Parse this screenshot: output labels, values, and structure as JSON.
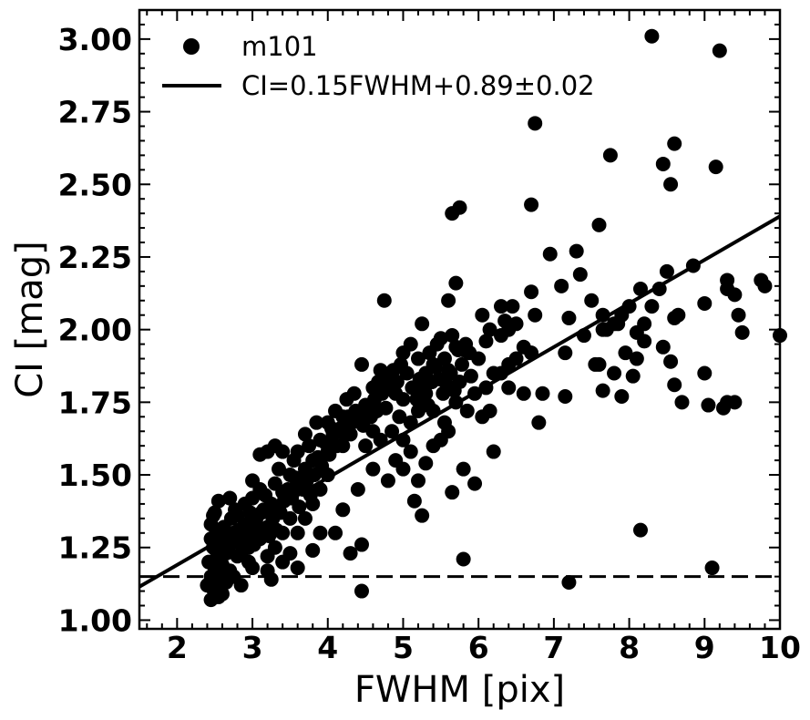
{
  "chart_data": {
    "type": "scatter",
    "title": "",
    "xlabel": "FWHM [pix]",
    "ylabel": "CI [mag]",
    "xlim": [
      1.5,
      10
    ],
    "ylim": [
      0.97,
      3.1
    ],
    "x_ticks": [
      "2",
      "3",
      "4",
      "5",
      "6",
      "7",
      "8",
      "9",
      "10"
    ],
    "y_ticks": [
      "1.00",
      "1.25",
      "1.50",
      "1.75",
      "2.00",
      "2.25",
      "2.50",
      "2.75",
      "3.00"
    ],
    "legend_position": "top-left",
    "legend": [
      "m101",
      "CI=0.15FWHM+0.89±0.02"
    ],
    "series": [
      {
        "name": "m101",
        "marker": "filled-circle",
        "color": "#000000",
        "points": [
          [
            2.45,
            1.07
          ],
          [
            2.5,
            1.1
          ],
          [
            2.55,
            1.08
          ],
          [
            2.4,
            1.12
          ],
          [
            2.6,
            1.09
          ],
          [
            2.45,
            1.15
          ],
          [
            2.5,
            1.18
          ],
          [
            2.42,
            1.2
          ],
          [
            2.55,
            1.22
          ],
          [
            2.48,
            1.25
          ],
          [
            2.6,
            1.19
          ],
          [
            2.65,
            1.23
          ],
          [
            2.7,
            1.17
          ],
          [
            2.45,
            1.28
          ],
          [
            2.52,
            1.3
          ],
          [
            2.58,
            1.27
          ],
          [
            2.62,
            1.32
          ],
          [
            2.7,
            1.26
          ],
          [
            2.75,
            1.3
          ],
          [
            2.8,
            1.22
          ],
          [
            2.85,
            1.27
          ],
          [
            2.9,
            1.33
          ],
          [
            2.95,
            1.25
          ],
          [
            3.0,
            1.3
          ],
          [
            3.05,
            1.35
          ],
          [
            2.45,
            1.33
          ],
          [
            2.5,
            1.37
          ],
          [
            2.55,
            1.41
          ],
          [
            2.7,
            1.42
          ],
          [
            2.48,
            1.36
          ],
          [
            2.8,
            1.36
          ],
          [
            2.9,
            1.4
          ],
          [
            3.0,
            1.42
          ],
          [
            3.0,
            1.48
          ],
          [
            3.1,
            1.45
          ],
          [
            3.15,
            1.38
          ],
          [
            3.2,
            1.32
          ],
          [
            3.25,
            1.4
          ],
          [
            3.3,
            1.47
          ],
          [
            3.35,
            1.52
          ],
          [
            3.4,
            1.44
          ],
          [
            3.5,
            1.5
          ],
          [
            3.55,
            1.55
          ],
          [
            3.6,
            1.46
          ],
          [
            3.7,
            1.52
          ],
          [
            3.75,
            1.6
          ],
          [
            3.8,
            1.55
          ],
          [
            3.9,
            1.62
          ],
          [
            4.0,
            1.58
          ],
          [
            4.05,
            1.66
          ],
          [
            3.1,
            1.57
          ],
          [
            3.2,
            1.58
          ],
          [
            3.3,
            1.6
          ],
          [
            3.4,
            1.58
          ],
          [
            3.6,
            1.58
          ],
          [
            3.7,
            1.64
          ],
          [
            3.85,
            1.68
          ],
          [
            4.0,
            1.68
          ],
          [
            4.1,
            1.72
          ],
          [
            4.2,
            1.7
          ],
          [
            4.25,
            1.76
          ],
          [
            4.35,
            1.78
          ],
          [
            4.45,
            1.88
          ],
          [
            4.5,
            1.74
          ],
          [
            4.6,
            1.8
          ],
          [
            4.65,
            1.72
          ],
          [
            4.7,
            1.86
          ],
          [
            4.8,
            1.84
          ],
          [
            4.9,
            1.78
          ],
          [
            5.0,
            1.76
          ],
          [
            4.75,
            2.1
          ],
          [
            5.0,
            1.92
          ],
          [
            5.1,
            1.95
          ],
          [
            5.2,
            1.9
          ],
          [
            5.25,
            2.02
          ],
          [
            5.3,
            1.85
          ],
          [
            5.35,
            1.92
          ],
          [
            5.4,
            1.88
          ],
          [
            5.45,
            1.95
          ],
          [
            5.5,
            1.97
          ],
          [
            5.55,
            1.9
          ],
          [
            5.6,
            1.86
          ],
          [
            5.65,
            1.98
          ],
          [
            5.7,
            1.94
          ],
          [
            5.75,
            1.82
          ],
          [
            5.8,
            1.93
          ],
          [
            5.9,
            1.84
          ],
          [
            6.0,
            1.9
          ],
          [
            6.05,
            2.05
          ],
          [
            6.1,
            1.96
          ],
          [
            6.15,
            2.0
          ],
          [
            6.2,
            1.85
          ],
          [
            6.3,
            1.98
          ],
          [
            6.35,
            2.03
          ],
          [
            6.4,
            1.88
          ],
          [
            6.45,
            2.08
          ],
          [
            6.5,
            2.02
          ],
          [
            6.6,
            1.94
          ],
          [
            6.7,
            1.92
          ],
          [
            6.75,
            2.05
          ],
          [
            5.6,
            2.1
          ],
          [
            5.65,
            2.4
          ],
          [
            5.75,
            2.42
          ],
          [
            5.7,
            2.16
          ],
          [
            6.3,
            2.08
          ],
          [
            6.4,
            2.0
          ],
          [
            6.7,
            2.13
          ],
          [
            6.7,
            2.43
          ],
          [
            6.75,
            2.71
          ],
          [
            6.95,
            2.26
          ],
          [
            7.1,
            2.15
          ],
          [
            7.15,
            1.92
          ],
          [
            7.2,
            2.04
          ],
          [
            7.3,
            2.27
          ],
          [
            7.35,
            2.19
          ],
          [
            7.4,
            1.98
          ],
          [
            7.5,
            2.1
          ],
          [
            7.55,
            1.88
          ],
          [
            7.6,
            2.36
          ],
          [
            7.65,
            2.05
          ],
          [
            7.7,
            2.0
          ],
          [
            7.75,
            2.6
          ],
          [
            7.8,
            2.02
          ],
          [
            7.9,
            2.05
          ],
          [
            8.0,
            2.08
          ],
          [
            8.1,
            1.99
          ],
          [
            8.15,
            2.14
          ],
          [
            8.2,
            2.02
          ],
          [
            8.3,
            3.01
          ],
          [
            8.4,
            2.14
          ],
          [
            8.45,
            2.57
          ],
          [
            8.5,
            2.2
          ],
          [
            8.55,
            2.5
          ],
          [
            8.6,
            2.04
          ],
          [
            8.6,
            2.64
          ],
          [
            8.85,
            2.22
          ],
          [
            9.15,
            2.56
          ],
          [
            9.2,
            2.96
          ],
          [
            9.3,
            2.17
          ],
          [
            9.4,
            2.12
          ],
          [
            9.3,
            2.14
          ],
          [
            9.45,
            2.05
          ],
          [
            9.5,
            1.99
          ],
          [
            9.75,
            2.17
          ],
          [
            9.8,
            2.15
          ],
          [
            10.0,
            1.98
          ],
          [
            9.0,
            2.09
          ],
          [
            9.0,
            1.85
          ],
          [
            9.05,
            1.74
          ],
          [
            9.25,
            1.73
          ],
          [
            9.3,
            1.75
          ],
          [
            9.4,
            1.75
          ],
          [
            9.1,
            1.18
          ],
          [
            8.15,
            1.31
          ],
          [
            7.2,
            1.13
          ],
          [
            5.8,
            1.21
          ],
          [
            4.45,
            1.1
          ],
          [
            4.45,
            1.26
          ],
          [
            4.3,
            1.23
          ],
          [
            4.1,
            1.3
          ],
          [
            3.8,
            1.24
          ],
          [
            3.6,
            1.18
          ],
          [
            3.4,
            1.2
          ],
          [
            3.2,
            1.17
          ],
          [
            3.0,
            1.18
          ],
          [
            2.85,
            1.12
          ],
          [
            3.25,
            1.14
          ],
          [
            3.5,
            1.23
          ],
          [
            3.9,
            1.3
          ],
          [
            4.2,
            1.38
          ],
          [
            4.4,
            1.45
          ],
          [
            4.6,
            1.52
          ],
          [
            4.8,
            1.48
          ],
          [
            4.9,
            1.55
          ],
          [
            5.0,
            1.52
          ],
          [
            5.1,
            1.58
          ],
          [
            5.2,
            1.48
          ],
          [
            5.3,
            1.54
          ],
          [
            5.4,
            1.6
          ],
          [
            5.5,
            1.62
          ],
          [
            5.15,
            1.41
          ],
          [
            5.25,
            1.36
          ],
          [
            5.65,
            1.44
          ],
          [
            5.8,
            1.52
          ],
          [
            5.95,
            1.47
          ],
          [
            6.2,
            1.58
          ],
          [
            6.05,
            1.7
          ],
          [
            6.15,
            1.72
          ],
          [
            6.4,
            1.8
          ],
          [
            6.6,
            1.78
          ],
          [
            6.8,
            1.68
          ],
          [
            6.85,
            1.78
          ],
          [
            7.15,
            1.77
          ],
          [
            7.6,
            1.88
          ],
          [
            7.65,
            1.79
          ],
          [
            7.8,
            1.85
          ],
          [
            7.9,
            1.77
          ],
          [
            7.95,
            1.92
          ],
          [
            8.05,
            1.84
          ],
          [
            8.1,
            1.9
          ],
          [
            8.2,
            1.96
          ],
          [
            8.45,
            1.94
          ],
          [
            8.55,
            1.89
          ],
          [
            8.6,
            1.81
          ],
          [
            8.7,
            1.75
          ],
          [
            7.65,
            2.0
          ],
          [
            7.85,
            2.02
          ],
          [
            8.3,
            2.08
          ],
          [
            8.65,
            2.05
          ],
          [
            5.7,
            1.75
          ],
          [
            5.85,
            1.72
          ],
          [
            5.95,
            1.78
          ],
          [
            6.1,
            1.8
          ],
          [
            6.3,
            1.85
          ],
          [
            6.5,
            1.9
          ],
          [
            5.0,
            1.62
          ],
          [
            5.1,
            1.68
          ],
          [
            5.2,
            1.72
          ],
          [
            5.3,
            1.78
          ],
          [
            5.4,
            1.72
          ],
          [
            5.55,
            1.68
          ],
          [
            5.6,
            1.65
          ],
          [
            4.85,
            1.65
          ],
          [
            4.95,
            1.7
          ],
          [
            4.6,
            1.65
          ],
          [
            4.7,
            1.62
          ],
          [
            4.5,
            1.6
          ],
          [
            4.3,
            1.64
          ],
          [
            4.2,
            1.6
          ],
          [
            4.0,
            1.5
          ],
          [
            3.9,
            1.45
          ],
          [
            3.8,
            1.4
          ],
          [
            3.7,
            1.35
          ],
          [
            3.6,
            1.3
          ],
          [
            3.5,
            1.35
          ],
          [
            3.4,
            1.3
          ],
          [
            3.3,
            1.25
          ],
          [
            3.2,
            1.22
          ],
          [
            3.1,
            1.28
          ],
          [
            2.95,
            1.2
          ],
          [
            2.75,
            1.15
          ],
          [
            2.65,
            1.13
          ],
          [
            2.55,
            1.14
          ],
          [
            2.47,
            1.11
          ],
          [
            2.52,
            1.24
          ],
          [
            2.57,
            1.16
          ],
          [
            2.67,
            1.29
          ],
          [
            2.72,
            1.35
          ],
          [
            2.77,
            1.38
          ],
          [
            2.82,
            1.31
          ],
          [
            2.87,
            1.24
          ],
          [
            2.92,
            1.29
          ],
          [
            2.97,
            1.37
          ],
          [
            3.02,
            1.26
          ],
          [
            3.07,
            1.32
          ],
          [
            3.12,
            1.37
          ],
          [
            3.17,
            1.43
          ],
          [
            3.22,
            1.29
          ],
          [
            3.27,
            1.35
          ],
          [
            3.32,
            1.31
          ],
          [
            3.37,
            1.37
          ],
          [
            3.42,
            1.41
          ],
          [
            3.47,
            1.45
          ],
          [
            3.52,
            1.42
          ],
          [
            3.57,
            1.49
          ],
          [
            3.62,
            1.39
          ],
          [
            3.67,
            1.45
          ],
          [
            3.72,
            1.48
          ],
          [
            3.77,
            1.43
          ],
          [
            3.82,
            1.5
          ],
          [
            3.87,
            1.56
          ],
          [
            3.92,
            1.53
          ],
          [
            3.97,
            1.61
          ],
          [
            4.02,
            1.57
          ],
          [
            4.07,
            1.64
          ],
          [
            4.12,
            1.6
          ],
          [
            4.17,
            1.66
          ],
          [
            4.22,
            1.64
          ],
          [
            4.27,
            1.7
          ],
          [
            4.32,
            1.68
          ],
          [
            4.37,
            1.72
          ],
          [
            4.42,
            1.7
          ],
          [
            4.47,
            1.67
          ],
          [
            4.52,
            1.72
          ],
          [
            4.57,
            1.7
          ],
          [
            4.62,
            1.76
          ],
          [
            4.67,
            1.82
          ],
          [
            4.72,
            1.78
          ],
          [
            4.77,
            1.73
          ],
          [
            4.82,
            1.8
          ],
          [
            4.87,
            1.86
          ],
          [
            4.92,
            1.82
          ],
          [
            4.97,
            1.88
          ],
          [
            5.05,
            1.85
          ],
          [
            5.12,
            1.8
          ],
          [
            5.18,
            1.76
          ],
          [
            5.22,
            1.83
          ],
          [
            5.28,
            1.79
          ],
          [
            5.33,
            1.74
          ],
          [
            5.38,
            1.82
          ],
          [
            5.43,
            1.87
          ],
          [
            5.48,
            1.83
          ],
          [
            5.53,
            1.78
          ],
          [
            5.58,
            1.81
          ],
          [
            5.63,
            1.85
          ],
          [
            5.68,
            1.79
          ],
          [
            5.73,
            1.93
          ],
          [
            5.78,
            1.88
          ],
          [
            5.83,
            1.95
          ],
          [
            5.88,
            1.92
          ]
        ]
      },
      {
        "name": "CI=0.15FWHM+0.89±0.02",
        "type": "line",
        "color": "#000000",
        "x": [
          1.5,
          10
        ],
        "y": [
          1.115,
          2.39
        ]
      }
    ],
    "annotations": [
      {
        "type": "hline",
        "style": "dashed",
        "y": 1.15
      }
    ]
  }
}
